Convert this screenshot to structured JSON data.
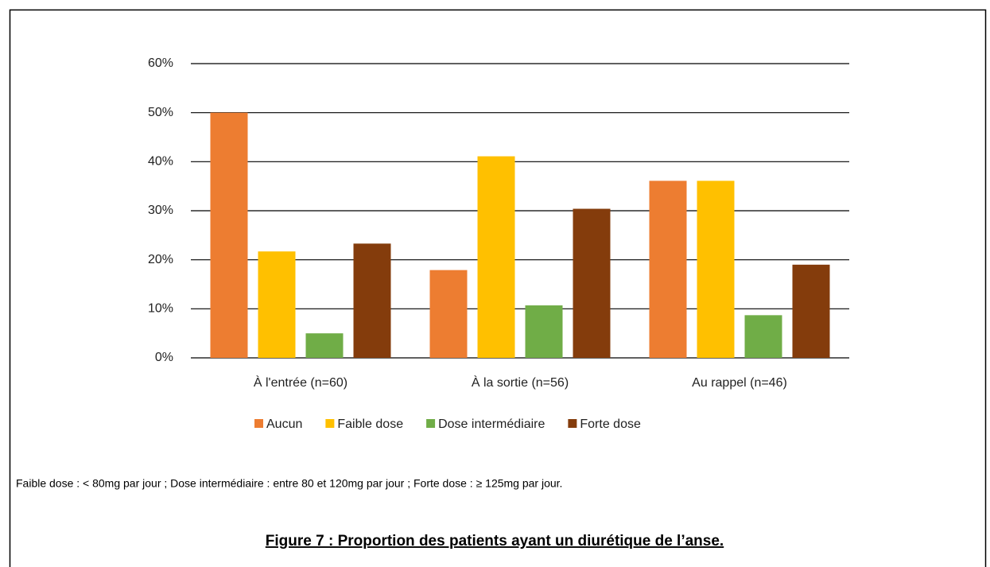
{
  "chart_data": {
    "type": "bar",
    "categories": [
      "À l'entrée (n=60)",
      "À la sortie (n=56)",
      "Au rappel (n=46)"
    ],
    "series": [
      {
        "name": "Aucun",
        "color": "#ed7d31",
        "values": [
          50,
          17.9,
          36.1
        ]
      },
      {
        "name": "Faible dose",
        "color": "#ffc000",
        "values": [
          21.7,
          41.1,
          36.1
        ]
      },
      {
        "name": "Dose intermédiaire",
        "color": "#70ad47",
        "values": [
          5,
          10.7,
          8.7
        ]
      },
      {
        "name": "Forte dose",
        "color": "#843c0c",
        "values": [
          23.3,
          30.4,
          19.0
        ]
      }
    ],
    "ylim": [
      0,
      60
    ],
    "yticks": [
      {
        "value": 0,
        "label": "0%"
      },
      {
        "value": 10,
        "label": "10%"
      },
      {
        "value": 20,
        "label": "20%"
      },
      {
        "value": 30,
        "label": "30%"
      },
      {
        "value": 40,
        "label": "40%"
      },
      {
        "value": 50,
        "label": "50%"
      },
      {
        "value": 60,
        "label": "60%"
      }
    ],
    "grid": true,
    "legend": "bottom",
    "note": "Faible dose : < 80mg par jour ; Dose intermédiaire : entre 80 et 120mg par jour ; Forte dose : ≥ 125mg par jour.",
    "caption": "Figure 7 : Proportion des patients ayant un diurétique de l’anse."
  }
}
